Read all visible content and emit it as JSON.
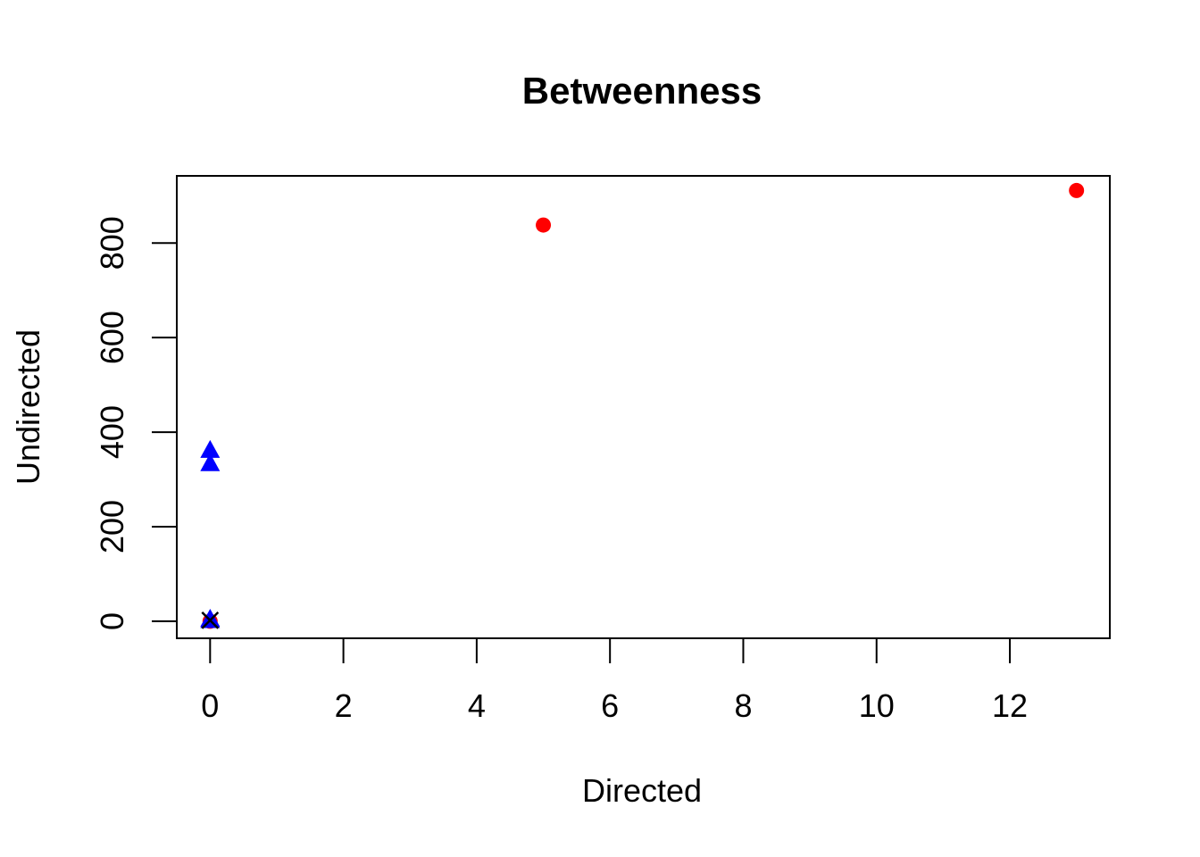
{
  "chart_data": {
    "type": "scatter",
    "title": "Betweenness",
    "xlabel": "Directed",
    "ylabel": "Undirected",
    "xlim": [
      -0.5,
      13.5
    ],
    "ylim": [
      -36,
      942
    ],
    "xticks": [
      0,
      2,
      4,
      6,
      8,
      10,
      12
    ],
    "yticks": [
      0,
      200,
      400,
      600,
      800
    ],
    "grid": false,
    "series": [
      {
        "marker": "circle",
        "color": "#ff0000",
        "points": [
          {
            "x": 5,
            "y": 838
          },
          {
            "x": 13,
            "y": 911
          },
          {
            "x": 0,
            "y": 0
          }
        ]
      },
      {
        "marker": "triangle",
        "color": "#0000ff",
        "points": [
          {
            "x": 0,
            "y": 360
          },
          {
            "x": 0,
            "y": 332
          },
          {
            "x": 0,
            "y": 3
          },
          {
            "x": 0,
            "y": 0
          }
        ]
      },
      {
        "marker": "cross",
        "color": "#000000",
        "points": [
          {
            "x": 0,
            "y": 2
          }
        ]
      }
    ]
  }
}
